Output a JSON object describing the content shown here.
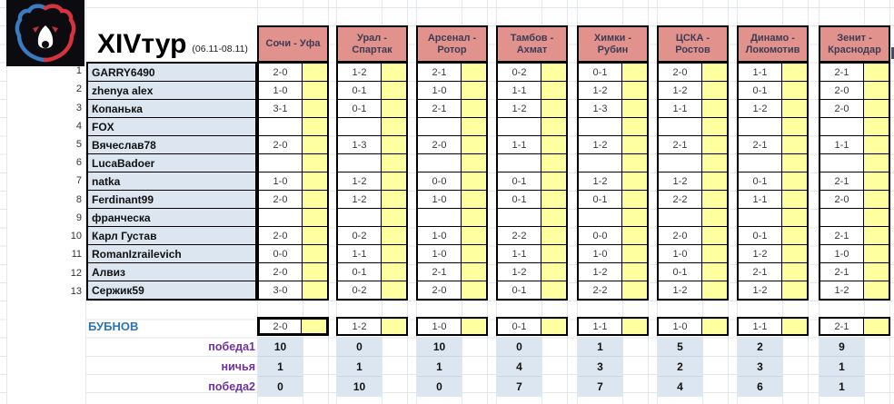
{
  "title": {
    "round": "XIVтур",
    "dates": "(06.11-08.11)"
  },
  "matches": [
    "Сочи - Уфа",
    "Урал - Спартак",
    "Арсенал - Ротор",
    "Тамбов - Ахмат",
    "Химки - Рубин",
    "ЦСКА - Ростов",
    "Динамо - Локомотив",
    "Зенит - Краснодар"
  ],
  "players": [
    {
      "num": 1,
      "name": "GARRY6490",
      "preds": [
        "2-0",
        "1-2",
        "2-1",
        "0-2",
        "0-1",
        "2-0",
        "1-1",
        "2-1"
      ]
    },
    {
      "num": 2,
      "name": "zhenya alex",
      "preds": [
        "1-0",
        "0-1",
        "1-0",
        "1-1",
        "1-2",
        "1-2",
        "0-1",
        "2-0"
      ]
    },
    {
      "num": 3,
      "name": "Копанька",
      "preds": [
        "3-1",
        "0-1",
        "2-1",
        "1-2",
        "1-3",
        "1-1",
        "1-2",
        "2-0"
      ]
    },
    {
      "num": 4,
      "name": "FOX",
      "preds": [
        "",
        "",
        "",
        "",
        "",
        "",
        "",
        ""
      ]
    },
    {
      "num": 5,
      "name": "Вячеслав78",
      "preds": [
        "2-0",
        "1-3",
        "2-0",
        "1-1",
        "1-2",
        "2-1",
        "2-1",
        "1-1"
      ]
    },
    {
      "num": 6,
      "name": "LucaBadoer",
      "preds": [
        "",
        "",
        "",
        "",
        "",
        "",
        "",
        ""
      ]
    },
    {
      "num": 7,
      "name": "natka",
      "preds": [
        "1-0",
        "1-2",
        "0-0",
        "0-1",
        "1-2",
        "1-2",
        "0-1",
        "2-1"
      ]
    },
    {
      "num": 8,
      "name": "Ferdinant99",
      "preds": [
        "2-0",
        "1-2",
        "1-0",
        "0-1",
        "0-1",
        "2-2",
        "1-1",
        "2-0"
      ]
    },
    {
      "num": 9,
      "name": "франческа",
      "preds": [
        "",
        "",
        "",
        "",
        "",
        "",
        "",
        ""
      ]
    },
    {
      "num": 10,
      "name": "Карл Густав",
      "preds": [
        "2-0",
        "0-2",
        "1-0",
        "2-2",
        "0-0",
        "2-0",
        "0-1",
        "2-1"
      ]
    },
    {
      "num": 11,
      "name": "RomanIzrailevich",
      "preds": [
        "0-0",
        "1-1",
        "1-0",
        "1-1",
        "1-0",
        "1-0",
        "1-2",
        "1-0"
      ]
    },
    {
      "num": 12,
      "name": "Алвиз",
      "preds": [
        "2-0",
        "0-1",
        "2-1",
        "1-2",
        "1-2",
        "0-1",
        "2-1",
        "2-1"
      ]
    },
    {
      "num": 13,
      "name": "Сержик59",
      "preds": [
        "3-0",
        "0-2",
        "2-0",
        "0-1",
        "2-2",
        "1-2",
        "1-2",
        "1-2"
      ]
    }
  ],
  "expert": {
    "name": "БУБНОВ",
    "preds": [
      "2-0",
      "1-2",
      "1-0",
      "0-1",
      "1-1",
      "1-0",
      "1-1",
      "2-1"
    ]
  },
  "stats": [
    {
      "label": "победа1",
      "values": [
        10,
        0,
        10,
        0,
        1,
        5,
        2,
        9
      ]
    },
    {
      "label": "ничья",
      "values": [
        1,
        1,
        1,
        4,
        3,
        2,
        3,
        1
      ]
    },
    {
      "label": "победа2",
      "values": [
        0,
        10,
        0,
        7,
        7,
        4,
        6,
        1
      ]
    }
  ],
  "colors": {
    "headerFill": "#E2928D",
    "yellowFill": "#FEFF9E",
    "blueFill": "#DCE6F1",
    "expertText": "#2E74B5",
    "statText": "#7030A0",
    "logoBg": "#0B0B10",
    "logoBlue": "#3B7BBF",
    "logoRed": "#D5333F"
  }
}
